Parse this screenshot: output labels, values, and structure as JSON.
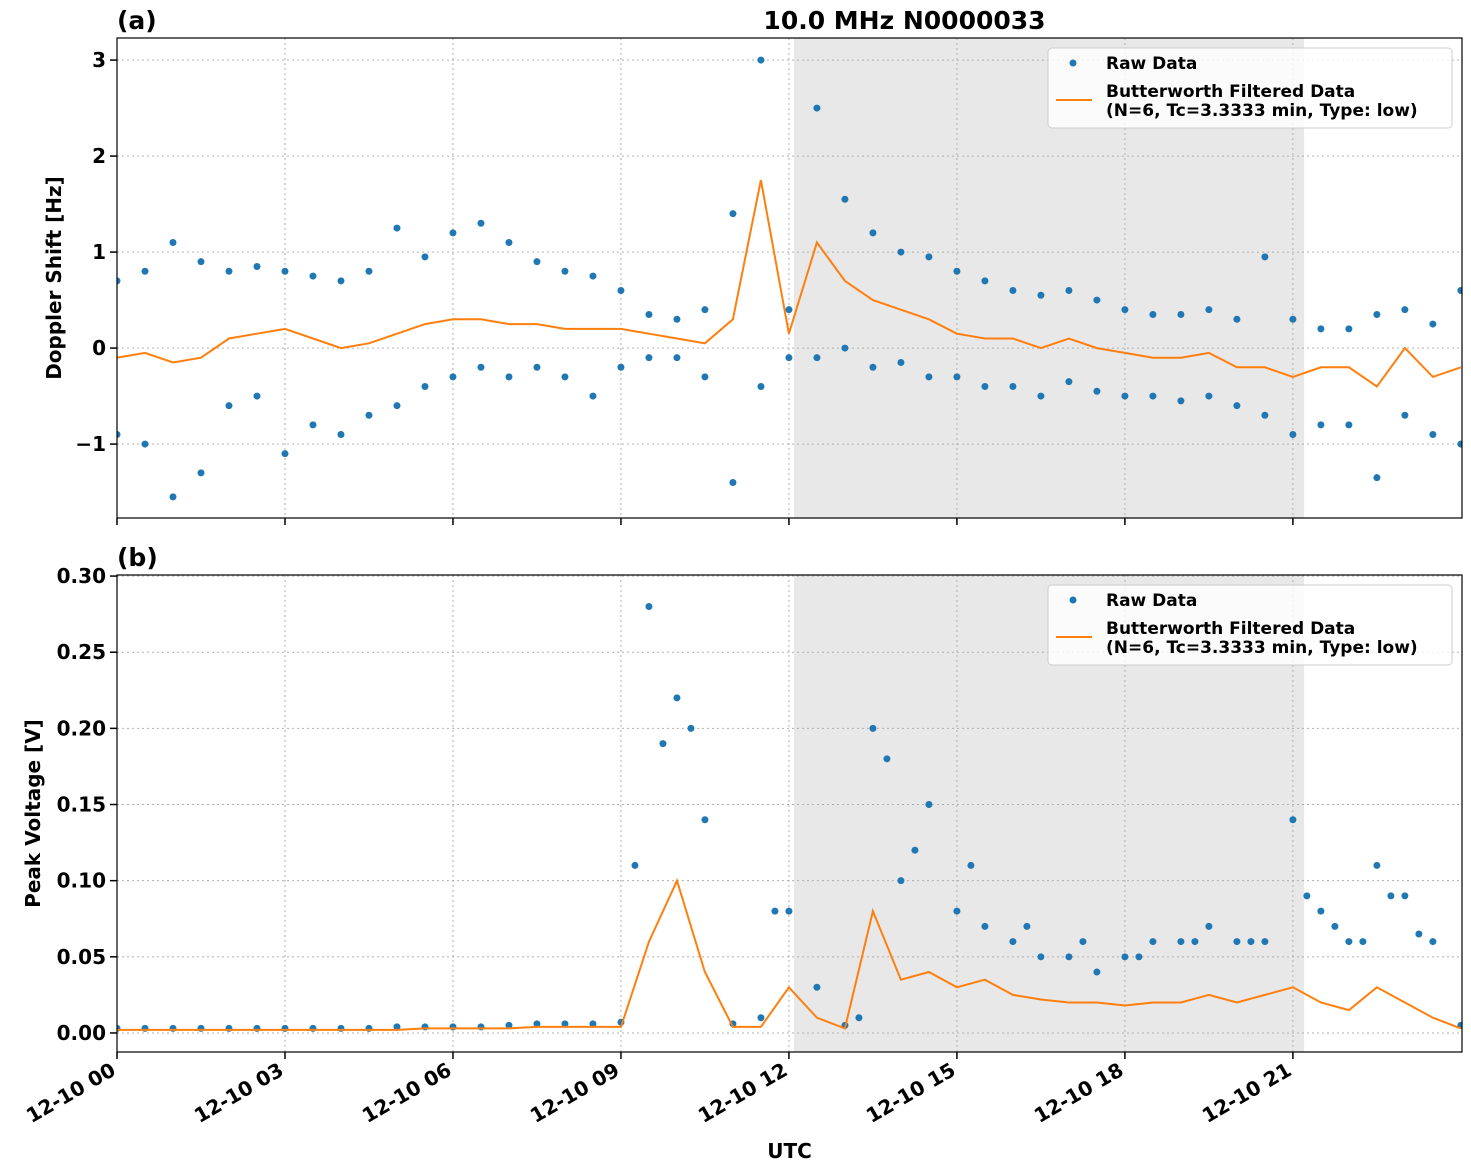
{
  "chart_data": [
    {
      "type": "scatter-line",
      "title": "10.0 MHz N0000033",
      "panel_label": "(a)",
      "y_label": "Doppler Shift [Hz]",
      "xlim": [
        0,
        24.02
      ],
      "ylim": [
        -1.77,
        3.23
      ],
      "yticks": [
        {
          "value": -1,
          "label": "−1"
        },
        0,
        1,
        2,
        3
      ],
      "grid": true,
      "legend": "upper right",
      "shaded_span": [
        12.09,
        21.2
      ],
      "series": [
        {
          "name": "Raw Data",
          "color": "#1f77b4",
          "mode": "markers",
          "x": [
            0,
            0.5,
            1,
            1.5,
            2,
            2.5,
            3,
            3.5,
            4,
            4.5,
            5,
            5.5,
            6,
            6.5,
            7,
            7.5,
            8,
            8.5,
            9,
            9.5,
            10,
            10.5,
            11,
            11.5,
            12,
            12.5,
            13,
            13.5,
            14,
            14.5,
            15,
            15.5,
            16,
            16.5,
            17,
            17.5,
            18,
            18.5,
            19,
            19.5,
            20,
            20.5,
            21,
            21.5,
            22,
            22.5,
            23,
            23.5,
            24,
            0,
            0.5,
            1,
            1.5,
            2,
            2.5,
            3,
            3.5,
            4,
            4.5,
            5,
            5.5,
            6,
            6.5,
            7,
            7.5,
            8,
            8.5,
            9,
            9.5,
            10,
            10.5,
            11,
            11.5,
            12,
            12.5,
            13,
            13.5,
            14,
            14.5,
            15,
            15.5,
            16,
            16.5,
            17,
            17.5,
            18,
            18.5,
            19,
            19.5,
            20,
            20.5,
            21,
            21.5,
            22,
            22.5,
            23,
            23.5,
            24
          ],
          "values": [
            0.7,
            0.8,
            1.1,
            0.9,
            0.8,
            0.85,
            0.8,
            0.75,
            0.7,
            0.8,
            1.25,
            0.95,
            1.2,
            1.3,
            1.1,
            0.9,
            0.8,
            0.75,
            0.6,
            0.35,
            0.3,
            0.4,
            1.4,
            3.0,
            0.4,
            2.5,
            1.55,
            1.2,
            1.0,
            0.95,
            0.8,
            0.7,
            0.6,
            0.55,
            0.6,
            0.5,
            0.4,
            0.35,
            0.35,
            0.4,
            0.3,
            0.95,
            0.3,
            0.2,
            0.2,
            0.35,
            0.4,
            0.25,
            0.6,
            -0.9,
            -1.0,
            -1.55,
            -1.3,
            -0.6,
            -0.5,
            -1.1,
            -0.8,
            -0.9,
            -0.7,
            -0.6,
            -0.4,
            -0.3,
            -0.2,
            -0.3,
            -0.2,
            -0.3,
            -0.5,
            -0.2,
            -0.1,
            -0.1,
            -0.3,
            -1.4,
            -0.4,
            -0.1,
            -0.1,
            0.0,
            -0.2,
            -0.15,
            -0.3,
            -0.3,
            -0.4,
            -0.4,
            -0.5,
            -0.35,
            -0.45,
            -0.5,
            -0.5,
            -0.55,
            -0.5,
            -0.6,
            -0.7,
            -0.9,
            -0.8,
            -0.8,
            -1.35,
            -0.7,
            -0.9,
            -1.0
          ]
        },
        {
          "name": "Butterworth Filtered Data\n(N=6, Tc=3.3333 min, Type: low)",
          "color": "#ff7f0e",
          "mode": "line",
          "x": [
            0,
            0.5,
            1,
            1.5,
            2,
            2.5,
            3,
            3.5,
            4,
            4.5,
            5,
            5.5,
            6,
            6.5,
            7,
            7.5,
            8,
            8.5,
            9,
            9.5,
            10,
            10.5,
            11,
            11.5,
            12,
            12.5,
            13,
            13.5,
            14,
            14.5,
            15,
            15.5,
            16,
            16.5,
            17,
            17.5,
            18,
            18.5,
            19,
            19.5,
            20,
            20.5,
            21,
            21.5,
            22,
            22.5,
            23,
            23.5,
            24
          ],
          "values": [
            -0.1,
            -0.05,
            -0.15,
            -0.1,
            0.1,
            0.15,
            0.2,
            0.1,
            0.0,
            0.05,
            0.15,
            0.25,
            0.3,
            0.3,
            0.25,
            0.25,
            0.2,
            0.2,
            0.2,
            0.15,
            0.1,
            0.05,
            0.3,
            1.75,
            0.15,
            1.1,
            0.7,
            0.5,
            0.4,
            0.3,
            0.15,
            0.1,
            0.1,
            0.0,
            0.1,
            0.0,
            -0.05,
            -0.1,
            -0.1,
            -0.05,
            -0.2,
            -0.2,
            -0.3,
            -0.2,
            -0.2,
            -0.4,
            0.0,
            -0.3,
            -0.2
          ]
        }
      ]
    },
    {
      "type": "scatter-line",
      "panel_label": "(b)",
      "y_label": "Peak Voltage [V]",
      "x_label": "UTC",
      "xlim": [
        0,
        24.02
      ],
      "ylim": [
        -0.0125,
        0.3007
      ],
      "xticks": [
        {
          "value": 0,
          "label": "12-10 00"
        },
        {
          "value": 3,
          "label": "12-10 03"
        },
        {
          "value": 6,
          "label": "12-10 06"
        },
        {
          "value": 9,
          "label": "12-10 09"
        },
        {
          "value": 12,
          "label": "12-10 12"
        },
        {
          "value": 15,
          "label": "12-10 15"
        },
        {
          "value": 18,
          "label": "12-10 18"
        },
        {
          "value": 21,
          "label": "12-10 21"
        }
      ],
      "yticks": [
        {
          "value": 0,
          "label": "0.00"
        },
        0.05,
        {
          "value": 0.1,
          "label": "0.10"
        },
        0.15,
        {
          "value": 0.2,
          "label": "0.20"
        },
        0.25,
        {
          "value": 0.3,
          "label": "0.30"
        }
      ],
      "grid": true,
      "legend": "upper right",
      "shaded_span": [
        12.09,
        21.2
      ],
      "series": [
        {
          "name": "Raw Data",
          "color": "#1f77b4",
          "mode": "markers",
          "x": [
            0,
            0.5,
            1,
            1.5,
            2,
            2.5,
            3,
            3.5,
            4,
            4.5,
            5,
            5.5,
            6,
            6.5,
            7,
            7.5,
            8,
            8.5,
            9,
            9.5,
            10,
            10.5,
            11,
            11.5,
            12,
            12.5,
            13,
            13.5,
            14,
            14.5,
            15,
            15.5,
            16,
            16.5,
            17,
            17.5,
            18,
            18.5,
            19,
            19.5,
            20,
            20.5,
            21,
            21.5,
            22,
            22.5,
            23,
            23.5,
            24,
            9.25,
            9.75,
            10.25,
            11.75,
            13.25,
            13.75,
            14.25,
            15.25,
            16.25,
            17.25,
            18.25,
            19.25,
            20.25,
            21.25,
            21.75,
            22.25,
            22.75,
            23.25
          ],
          "values": [
            0.003,
            0.003,
            0.003,
            0.003,
            0.003,
            0.003,
            0.003,
            0.003,
            0.003,
            0.003,
            0.004,
            0.004,
            0.004,
            0.004,
            0.005,
            0.006,
            0.006,
            0.006,
            0.007,
            0.28,
            0.22,
            0.14,
            0.006,
            0.01,
            0.08,
            0.03,
            0.005,
            0.2,
            0.1,
            0.15,
            0.08,
            0.07,
            0.06,
            0.05,
            0.05,
            0.04,
            0.05,
            0.06,
            0.06,
            0.07,
            0.06,
            0.06,
            0.14,
            0.08,
            0.06,
            0.11,
            0.09,
            0.06,
            0.005,
            0.11,
            0.19,
            0.2,
            0.08,
            0.01,
            0.18,
            0.12,
            0.11,
            0.07,
            0.06,
            0.05,
            0.06,
            0.06,
            0.09,
            0.07,
            0.06,
            0.09,
            0.065
          ]
        },
        {
          "name": "Butterworth Filtered Data\n(N=6, Tc=3.3333 min, Type: low)",
          "color": "#ff7f0e",
          "mode": "line",
          "x": [
            0,
            0.5,
            1,
            1.5,
            2,
            2.5,
            3,
            3.5,
            4,
            4.5,
            5,
            5.5,
            6,
            6.5,
            7,
            7.5,
            8,
            8.5,
            9,
            9.5,
            10,
            10.5,
            11,
            11.5,
            12,
            12.5,
            13,
            13.5,
            14,
            14.5,
            15,
            15.5,
            16,
            16.5,
            17,
            17.5,
            18,
            18.5,
            19,
            19.5,
            20,
            20.5,
            21,
            21.5,
            22,
            22.5,
            23,
            23.5,
            24
          ],
          "values": [
            0.002,
            0.002,
            0.002,
            0.002,
            0.002,
            0.002,
            0.002,
            0.002,
            0.002,
            0.002,
            0.002,
            0.003,
            0.003,
            0.003,
            0.003,
            0.004,
            0.004,
            0.004,
            0.004,
            0.06,
            0.1,
            0.04,
            0.004,
            0.004,
            0.03,
            0.01,
            0.003,
            0.08,
            0.035,
            0.04,
            0.03,
            0.035,
            0.025,
            0.022,
            0.02,
            0.02,
            0.018,
            0.02,
            0.02,
            0.025,
            0.02,
            0.025,
            0.03,
            0.02,
            0.015,
            0.03,
            0.02,
            0.01,
            0.003
          ]
        }
      ]
    }
  ]
}
